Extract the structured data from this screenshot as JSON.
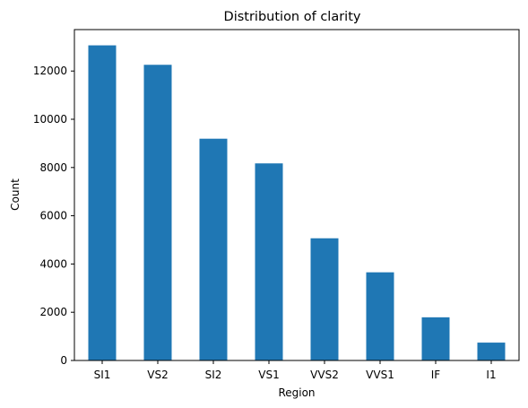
{
  "chart_data": {
    "type": "bar",
    "title": "Distribution of clarity",
    "xlabel": "Region",
    "ylabel": "Count",
    "categories": [
      "SI1",
      "VS2",
      "SI2",
      "VS1",
      "VVS2",
      "VVS1",
      "IF",
      "I1"
    ],
    "values": [
      13065,
      12258,
      9194,
      8171,
      5066,
      3655,
      1790,
      741
    ],
    "ylim": [
      0,
      13718
    ],
    "yticks": [
      0,
      2000,
      4000,
      6000,
      8000,
      10000,
      12000
    ],
    "bar_color": "#1f77b4",
    "grid": false,
    "legend": "none"
  }
}
